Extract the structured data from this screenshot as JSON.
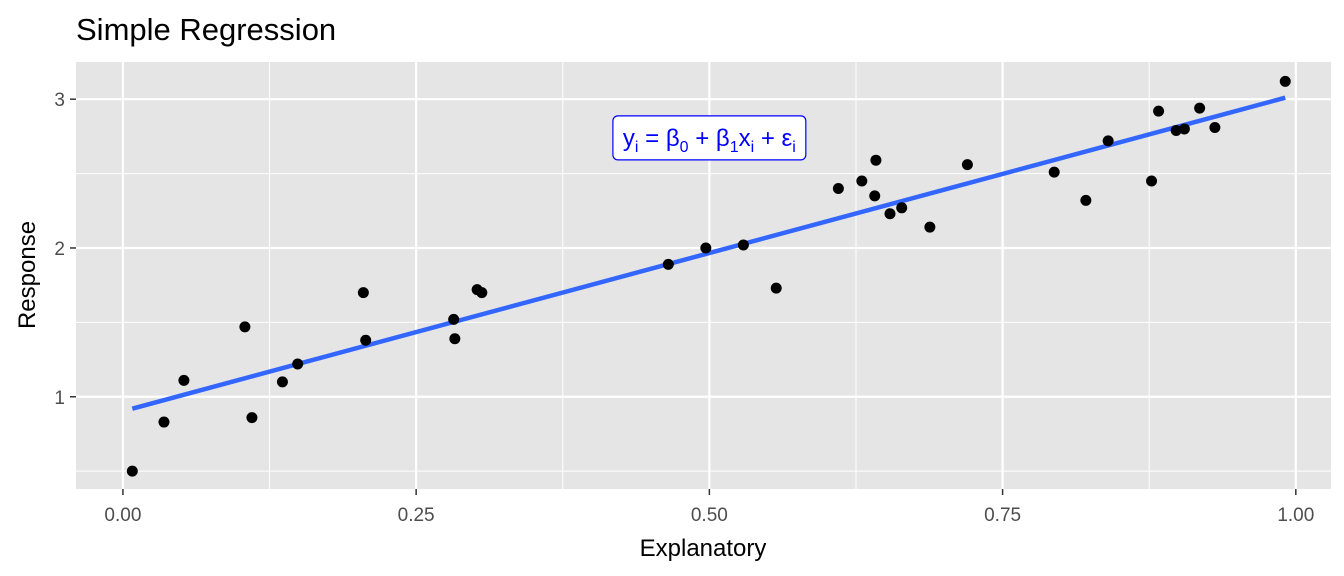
{
  "chart_data": {
    "type": "scatter",
    "title": "Simple Regression",
    "xlabel": "Explanatory",
    "ylabel": "Response",
    "xlim": [
      -0.04,
      1.03
    ],
    "ylim": [
      0.38,
      3.25
    ],
    "x_ticks": [
      0.0,
      0.25,
      0.5,
      0.75,
      1.0
    ],
    "x_tick_labels": [
      "0.00",
      "0.25",
      "0.50",
      "0.75",
      "1.00"
    ],
    "y_ticks": [
      1,
      2,
      3
    ],
    "y_tick_labels": [
      "1",
      "2",
      "3"
    ],
    "grid": true,
    "legend": "none",
    "series": [
      {
        "type": "scatter",
        "color": "#000000",
        "points": [
          [
            0.008,
            0.5
          ],
          [
            0.035,
            0.83
          ],
          [
            0.052,
            1.11
          ],
          [
            0.104,
            1.47
          ],
          [
            0.11,
            0.86
          ],
          [
            0.136,
            1.1
          ],
          [
            0.149,
            1.22
          ],
          [
            0.205,
            1.7
          ],
          [
            0.207,
            1.38
          ],
          [
            0.282,
            1.52
          ],
          [
            0.283,
            1.39
          ],
          [
            0.302,
            1.72
          ],
          [
            0.306,
            1.7
          ],
          [
            0.465,
            1.89
          ],
          [
            0.497,
            2.0
          ],
          [
            0.529,
            2.02
          ],
          [
            0.557,
            1.73
          ],
          [
            0.61,
            2.4
          ],
          [
            0.63,
            2.45
          ],
          [
            0.641,
            2.35
          ],
          [
            0.642,
            2.59
          ],
          [
            0.654,
            2.23
          ],
          [
            0.664,
            2.27
          ],
          [
            0.688,
            2.14
          ],
          [
            0.72,
            2.56
          ],
          [
            0.794,
            2.51
          ],
          [
            0.821,
            2.32
          ],
          [
            0.84,
            2.72
          ],
          [
            0.877,
            2.45
          ],
          [
            0.883,
            2.92
          ],
          [
            0.898,
            2.79
          ],
          [
            0.905,
            2.8
          ],
          [
            0.918,
            2.94
          ],
          [
            0.931,
            2.81
          ],
          [
            0.991,
            3.12
          ]
        ]
      },
      {
        "type": "line",
        "color": "#3366ff",
        "x": [
          0.008,
          0.991
        ],
        "y": [
          0.92,
          3.01
        ]
      }
    ],
    "annotation": {
      "label": "equation-label",
      "text": "yi = β0 + β1xi + εi",
      "x": 0.5,
      "y": 2.74,
      "color": "#0000ff"
    },
    "colors": {
      "panel_background": "#e5e5e5",
      "grid": "#ffffff",
      "points": "#000000",
      "fit_line": "#3366ff",
      "annotation": "#0000ff"
    }
  }
}
